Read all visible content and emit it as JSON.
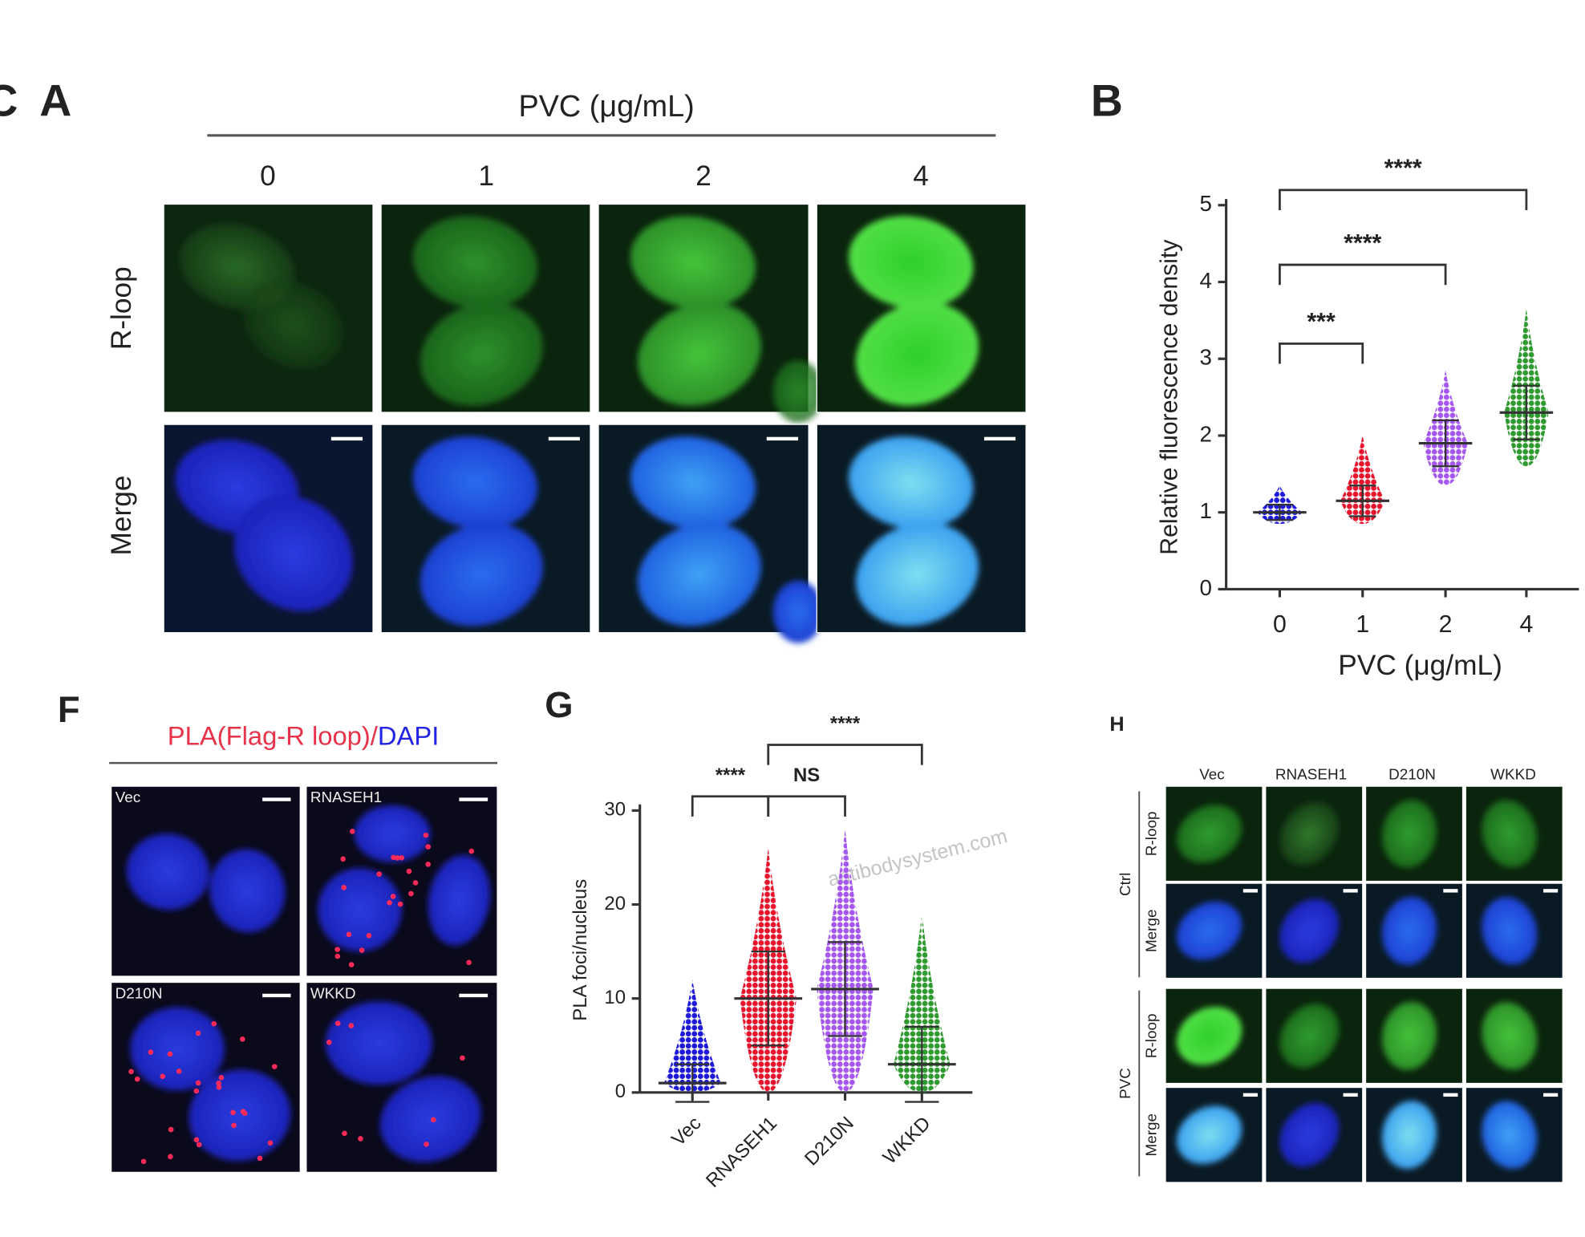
{
  "panels": {
    "stray_label": "C",
    "watermark": "antibodysystem.com",
    "A": {
      "label": "A",
      "axis_title": "PVC (μg/mL)",
      "columns": [
        "0",
        "1",
        "2",
        "4"
      ],
      "rows": [
        "R-loop",
        "Merge"
      ]
    },
    "F": {
      "label": "F",
      "title_pla": "PLA(Flag-R loop)/",
      "title_dapi": "DAPI",
      "images": [
        "Vec",
        "RNASEH1",
        "D210N",
        "WKKD"
      ]
    },
    "H": {
      "label": "H",
      "columns": [
        "Vec",
        "RNASEH1",
        "D210N",
        "WKKD"
      ],
      "rows": [
        "R-loop",
        "Merge"
      ],
      "groups": [
        "Ctrl",
        "PVC"
      ]
    }
  },
  "chart_data": [
    {
      "type": "dot",
      "label": "B",
      "xlabel": "PVC (μg/mL)",
      "ylabel": "Relative fluorescence density",
      "categories": [
        "0",
        "1",
        "2",
        "4"
      ],
      "values": [
        1.0,
        1.15,
        1.9,
        2.3
      ],
      "errors": [
        0.1,
        0.2,
        0.3,
        0.35
      ],
      "min": [
        0.85,
        0.85,
        1.35,
        1.6
      ],
      "max": [
        1.35,
        2.0,
        2.85,
        3.65
      ],
      "colors": [
        "#1c1ad8",
        "#e8132c",
        "#a557f2",
        "#2f9a2f"
      ],
      "ylim": [
        0,
        5
      ],
      "yticks": [
        0,
        1,
        2,
        3,
        4,
        5
      ],
      "comparisons": [
        "***",
        "****",
        "****"
      ]
    },
    {
      "type": "dot",
      "label": "G",
      "ylabel": "PLA foci/nucleus",
      "categories": [
        "Vec",
        "RNASEH1",
        "D210N",
        "WKKD"
      ],
      "values": [
        1,
        10,
        11,
        3
      ],
      "errors": [
        2,
        5,
        5,
        4
      ],
      "min": [
        0,
        0,
        0,
        0
      ],
      "max": [
        12,
        26,
        28,
        19
      ],
      "colors": [
        "#1c1ad8",
        "#e8132c",
        "#a557f2",
        "#2f9a2f"
      ],
      "ylim": [
        0,
        30
      ],
      "yticks": [
        0,
        10,
        20,
        30
      ],
      "comparisons": [
        "****",
        "NS",
        "****"
      ]
    }
  ]
}
